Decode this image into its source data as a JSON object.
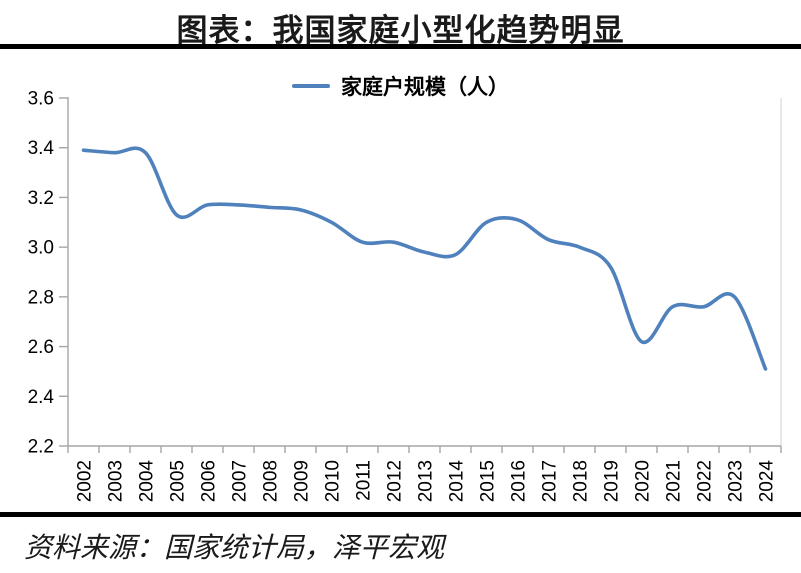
{
  "title": "图表：我国家庭小型化趋势明显",
  "legend": {
    "label": "家庭户规模（人）"
  },
  "source": "资料来源：国家统计局，泽平宏观",
  "colors": {
    "line": "#4F81BD",
    "axis": "#A6A6A6",
    "plot_border": "#D9D9D9",
    "rule": "#000000",
    "text": "#000000"
  },
  "chart_data": {
    "type": "line",
    "title": "图表：我国家庭小型化趋势明显",
    "categories": [
      "2002",
      "2003",
      "2004",
      "2005",
      "2006",
      "2007",
      "2008",
      "2009",
      "2010",
      "2011",
      "2012",
      "2013",
      "2014",
      "2015",
      "2016",
      "2017",
      "2018",
      "2019",
      "2020",
      "2021",
      "2022",
      "2023",
      "2024"
    ],
    "series": [
      {
        "name": "家庭户规模（人）",
        "values": [
          3.39,
          3.38,
          3.38,
          3.13,
          3.17,
          3.17,
          3.16,
          3.15,
          3.1,
          3.02,
          3.02,
          2.98,
          2.97,
          3.1,
          3.11,
          3.03,
          3.0,
          2.92,
          2.62,
          2.76,
          2.76,
          2.8,
          2.51
        ]
      }
    ],
    "xlabel": "",
    "ylabel": "",
    "ylim": [
      2.2,
      3.6
    ],
    "ytick_step": 0.2,
    "ytick_labels": [
      "3.6",
      "3.4",
      "3.2",
      "3.0",
      "2.8",
      "2.6",
      "2.4",
      "2.2"
    ],
    "grid": false,
    "legend_position": "top-center",
    "smooth": true,
    "x_labels_rotated": true
  }
}
